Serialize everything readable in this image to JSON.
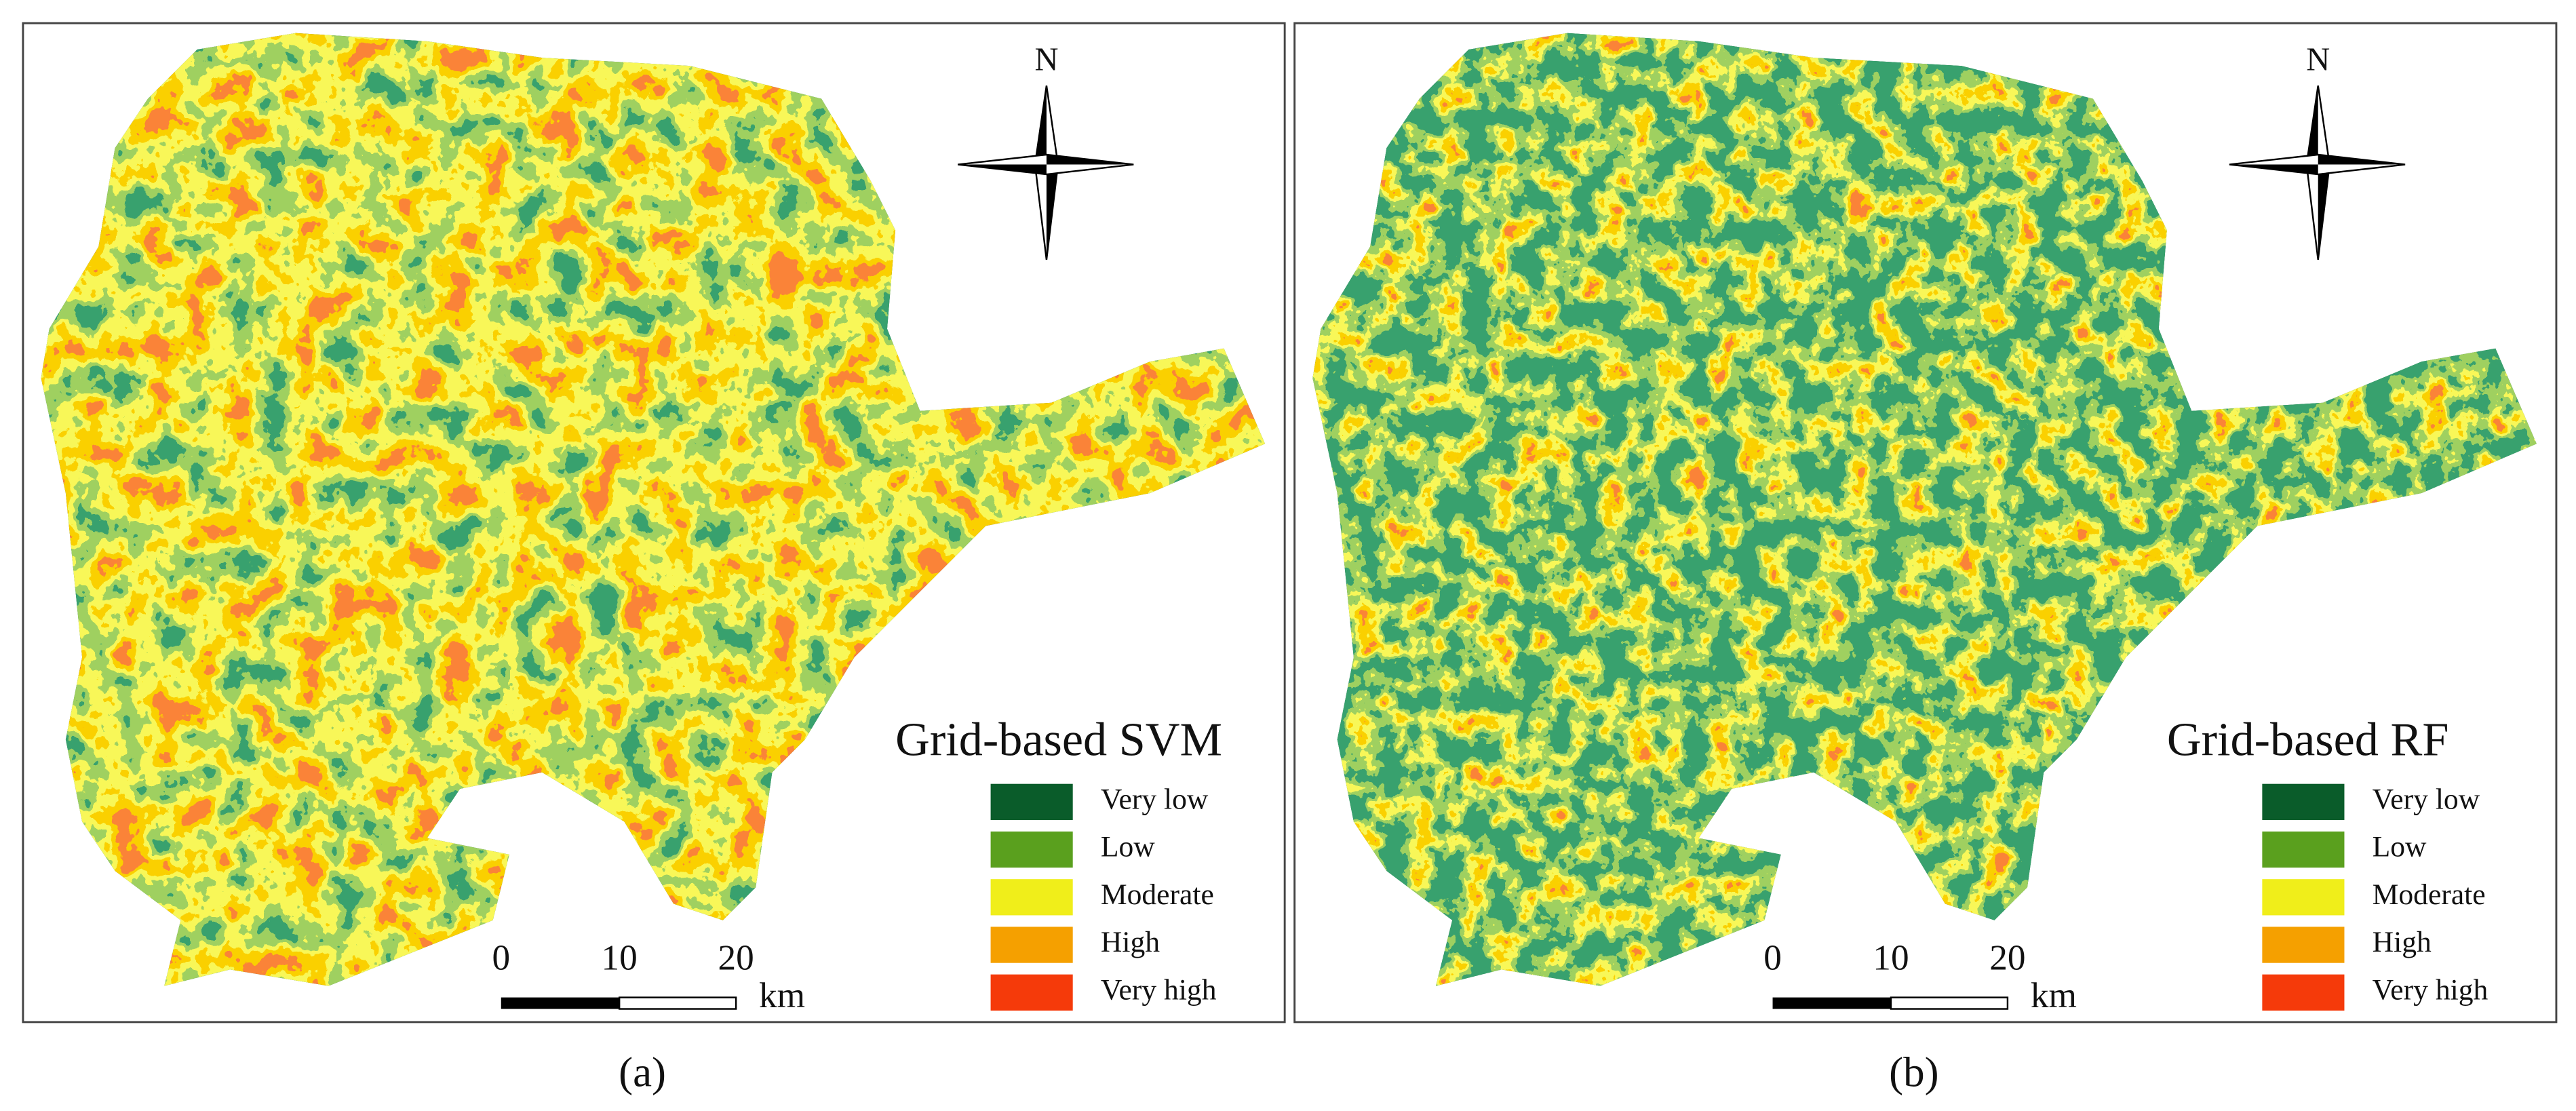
{
  "panels": [
    {
      "title": "Grid-based SVM",
      "legend": [
        "Very low",
        "Low",
        "Moderate",
        "High",
        "Very high"
      ],
      "scale": [
        "0",
        "10",
        "20"
      ],
      "unit": "km",
      "north": "N",
      "caption": "(a)"
    },
    {
      "title": "Grid-based RF",
      "legend": [
        "Very low",
        "Low",
        "Moderate",
        "High",
        "Very high"
      ],
      "scale": [
        "0",
        "10",
        "20"
      ],
      "unit": "km",
      "north": "N",
      "caption": "(b)"
    }
  ]
}
